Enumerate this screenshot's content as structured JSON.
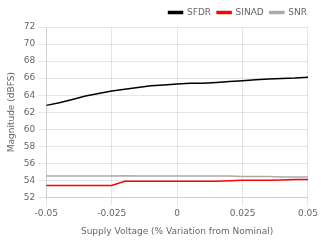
{
  "chart_data": {
    "type": "line",
    "xlabel": "Supply Voltage (% Variation from Nominal)",
    "ylabel": "Magnitude (dBFS)",
    "xlim": [
      -0.05,
      0.05
    ],
    "ylim": [
      52,
      72
    ],
    "xticks": [
      -0.05,
      -0.025,
      0,
      0.025,
      0.05
    ],
    "yticks": [
      52,
      54,
      56,
      58,
      60,
      62,
      64,
      66,
      68,
      70,
      72
    ],
    "x": [
      -0.05,
      -0.045,
      -0.04,
      -0.035,
      -0.03,
      -0.025,
      -0.02,
      -0.015,
      -0.01,
      -0.005,
      0.0,
      0.005,
      0.01,
      0.015,
      0.02,
      0.025,
      0.03,
      0.035,
      0.04,
      0.045,
      0.05
    ],
    "series": [
      {
        "name": "SFDR",
        "color": "#000000",
        "values": [
          62.8,
          63.1,
          63.5,
          63.9,
          64.2,
          64.5,
          64.7,
          64.9,
          65.1,
          65.2,
          65.3,
          65.4,
          65.4,
          65.5,
          65.6,
          65.7,
          65.8,
          65.9,
          65.95,
          66.0,
          66.1
        ]
      },
      {
        "name": "SINAD",
        "color": "#ff0000",
        "values": [
          53.4,
          53.4,
          53.4,
          53.4,
          53.4,
          53.4,
          53.9,
          53.9,
          53.9,
          53.9,
          53.9,
          53.9,
          53.9,
          53.9,
          53.95,
          54.0,
          54.0,
          54.0,
          54.05,
          54.1,
          54.1
        ]
      },
      {
        "name": "SNR",
        "color": "#aaaaaa",
        "values": [
          54.5,
          54.5,
          54.5,
          54.5,
          54.5,
          54.5,
          54.55,
          54.5,
          54.5,
          54.5,
          54.5,
          54.5,
          54.5,
          54.5,
          54.5,
          54.45,
          54.45,
          54.45,
          54.4,
          54.4,
          54.4
        ]
      }
    ],
    "grid": true,
    "legend": "upper right"
  }
}
